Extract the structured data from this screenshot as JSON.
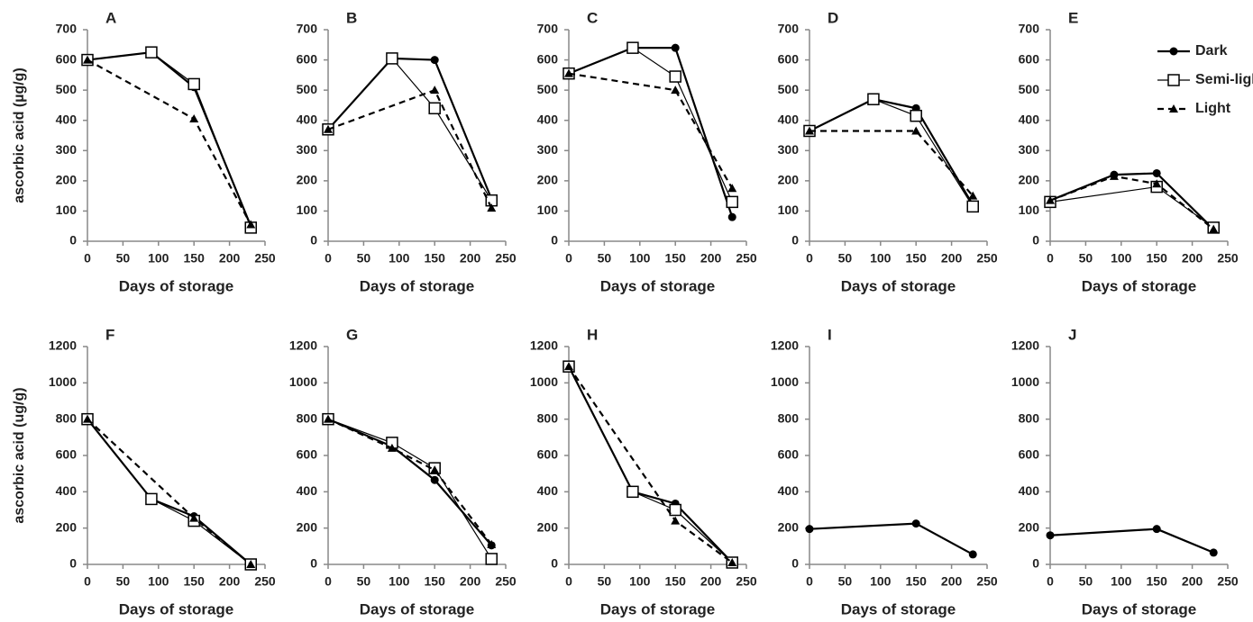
{
  "chart_data": [
    {
      "type": "line",
      "title": "A",
      "y_label": "ascorbic acid (µg/g)",
      "x_label": "Days of storage",
      "xlim": [
        0,
        250
      ],
      "xticks": [
        0,
        50,
        100,
        150,
        200,
        250
      ],
      "ylim": [
        0,
        700
      ],
      "yticks": [
        0,
        100,
        200,
        300,
        400,
        500,
        600,
        700
      ],
      "series": [
        {
          "name": "Dark",
          "color": "#000000",
          "marker": "circle",
          "linestyle": "solid",
          "x": [
            0,
            90,
            150,
            230
          ],
          "values": [
            600,
            625,
            510,
            50
          ]
        },
        {
          "name": "Semi-light",
          "color": "#000000",
          "marker": "square",
          "linestyle": "thin",
          "x": [
            0,
            90,
            150,
            230
          ],
          "values": [
            600,
            625,
            520,
            45
          ]
        },
        {
          "name": "Light",
          "color": "#000000",
          "marker": "triangle",
          "linestyle": "dashed",
          "x": [
            0,
            150,
            230
          ],
          "values": [
            600,
            405,
            55
          ]
        }
      ]
    },
    {
      "type": "line",
      "title": "B",
      "x_label": "Days of storage",
      "xlim": [
        0,
        250
      ],
      "xticks": [
        0,
        50,
        100,
        150,
        200,
        250
      ],
      "ylim": [
        0,
        700
      ],
      "yticks": [
        0,
        100,
        200,
        300,
        400,
        500,
        600,
        700
      ],
      "series": [
        {
          "name": "Dark",
          "color": "#000000",
          "marker": "circle",
          "linestyle": "solid",
          "x": [
            0,
            90,
            150,
            230
          ],
          "values": [
            370,
            605,
            600,
            140
          ]
        },
        {
          "name": "Semi-light",
          "color": "#000000",
          "marker": "square",
          "linestyle": "thin",
          "x": [
            0,
            90,
            150,
            230
          ],
          "values": [
            370,
            605,
            440,
            135
          ]
        },
        {
          "name": "Light",
          "color": "#000000",
          "marker": "triangle",
          "linestyle": "dashed",
          "x": [
            0,
            150,
            230
          ],
          "values": [
            370,
            500,
            110
          ]
        }
      ]
    },
    {
      "type": "line",
      "title": "C",
      "x_label": "Days of storage",
      "xlim": [
        0,
        250
      ],
      "xticks": [
        0,
        50,
        100,
        150,
        200,
        250
      ],
      "ylim": [
        0,
        700
      ],
      "yticks": [
        0,
        100,
        200,
        300,
        400,
        500,
        600,
        700
      ],
      "series": [
        {
          "name": "Dark",
          "color": "#000000",
          "marker": "circle",
          "linestyle": "solid",
          "x": [
            0,
            90,
            150,
            230
          ],
          "values": [
            555,
            640,
            640,
            80
          ]
        },
        {
          "name": "Semi-light",
          "color": "#000000",
          "marker": "square",
          "linestyle": "thin",
          "x": [
            0,
            90,
            150,
            230
          ],
          "values": [
            555,
            640,
            545,
            130
          ]
        },
        {
          "name": "Light",
          "color": "#000000",
          "marker": "triangle",
          "linestyle": "dashed",
          "x": [
            0,
            150,
            230
          ],
          "values": [
            555,
            500,
            175
          ]
        }
      ]
    },
    {
      "type": "line",
      "title": "D",
      "x_label": "Days of storage",
      "xlim": [
        0,
        250
      ],
      "xticks": [
        0,
        50,
        100,
        150,
        200,
        250
      ],
      "ylim": [
        0,
        700
      ],
      "yticks": [
        0,
        100,
        200,
        300,
        400,
        500,
        600,
        700
      ],
      "series": [
        {
          "name": "Dark",
          "color": "#000000",
          "marker": "circle",
          "linestyle": "solid",
          "x": [
            0,
            90,
            150,
            230
          ],
          "values": [
            365,
            470,
            440,
            120
          ]
        },
        {
          "name": "Semi-light",
          "color": "#000000",
          "marker": "square",
          "linestyle": "thin",
          "x": [
            0,
            90,
            150,
            230
          ],
          "values": [
            365,
            470,
            415,
            115
          ]
        },
        {
          "name": "Light",
          "color": "#000000",
          "marker": "triangle",
          "linestyle": "dashed",
          "x": [
            0,
            150,
            230
          ],
          "values": [
            365,
            365,
            150
          ]
        }
      ]
    },
    {
      "type": "line",
      "title": "E",
      "x_label": "Days of storage",
      "xlim": [
        0,
        250
      ],
      "xticks": [
        0,
        50,
        100,
        150,
        200,
        250
      ],
      "ylim": [
        0,
        700
      ],
      "yticks": [
        0,
        100,
        200,
        300,
        400,
        500,
        600,
        700
      ],
      "legend": "upper right",
      "series": [
        {
          "name": "Dark",
          "color": "#000000",
          "marker": "circle",
          "linestyle": "solid",
          "x": [
            0,
            90,
            150,
            230
          ],
          "values": [
            135,
            220,
            225,
            40
          ]
        },
        {
          "name": "Semi-light",
          "color": "#000000",
          "marker": "square",
          "linestyle": "thin",
          "x": [
            0,
            150,
            230
          ],
          "values": [
            130,
            180,
            45
          ]
        },
        {
          "name": "Light",
          "color": "#000000",
          "marker": "triangle",
          "linestyle": "dashed",
          "x": [
            0,
            90,
            150,
            230
          ],
          "values": [
            135,
            215,
            190,
            40
          ]
        }
      ]
    },
    {
      "type": "line",
      "title": "F",
      "y_label": "ascorbic acid (ug/g)",
      "x_label": "Days of storage",
      "xlim": [
        0,
        250
      ],
      "xticks": [
        0,
        50,
        100,
        150,
        200,
        250
      ],
      "ylim": [
        0,
        1200
      ],
      "yticks": [
        0,
        200,
        400,
        600,
        800,
        1000,
        1200
      ],
      "series": [
        {
          "name": "Dark",
          "color": "#000000",
          "marker": "circle",
          "linestyle": "solid",
          "x": [
            0,
            90,
            150,
            230
          ],
          "values": [
            800,
            360,
            265,
            0
          ]
        },
        {
          "name": "Semi-light",
          "color": "#000000",
          "marker": "square",
          "linestyle": "thin",
          "x": [
            0,
            90,
            150,
            230
          ],
          "values": [
            800,
            360,
            240,
            0
          ]
        },
        {
          "name": "Light",
          "color": "#000000",
          "marker": "triangle",
          "linestyle": "dashed",
          "x": [
            0,
            150,
            230
          ],
          "values": [
            800,
            255,
            0
          ]
        }
      ]
    },
    {
      "type": "line",
      "title": "G",
      "x_label": "Days of storage",
      "xlim": [
        0,
        250
      ],
      "xticks": [
        0,
        50,
        100,
        150,
        200,
        250
      ],
      "ylim": [
        0,
        1200
      ],
      "yticks": [
        0,
        200,
        400,
        600,
        800,
        1000,
        1200
      ],
      "series": [
        {
          "name": "Dark",
          "color": "#000000",
          "marker": "circle",
          "linestyle": "solid",
          "x": [
            0,
            90,
            150,
            230
          ],
          "values": [
            800,
            650,
            465,
            105
          ]
        },
        {
          "name": "Semi-light",
          "color": "#000000",
          "marker": "square",
          "linestyle": "thin",
          "x": [
            0,
            90,
            150,
            230
          ],
          "values": [
            800,
            670,
            530,
            30
          ]
        },
        {
          "name": "Light",
          "color": "#000000",
          "marker": "triangle",
          "linestyle": "dashed",
          "x": [
            0,
            90,
            150,
            230
          ],
          "values": [
            800,
            640,
            520,
            110
          ]
        }
      ]
    },
    {
      "type": "line",
      "title": "H",
      "x_label": "Days of storage",
      "xlim": [
        0,
        250
      ],
      "xticks": [
        0,
        50,
        100,
        150,
        200,
        250
      ],
      "ylim": [
        0,
        1200
      ],
      "yticks": [
        0,
        200,
        400,
        600,
        800,
        1000,
        1200
      ],
      "series": [
        {
          "name": "Dark",
          "color": "#000000",
          "marker": "circle",
          "linestyle": "solid",
          "x": [
            0,
            90,
            150,
            230
          ],
          "values": [
            1090,
            400,
            335,
            10
          ]
        },
        {
          "name": "Semi-light",
          "color": "#000000",
          "marker": "square",
          "linestyle": "thin",
          "x": [
            0,
            90,
            150,
            230
          ],
          "values": [
            1090,
            400,
            300,
            10
          ]
        },
        {
          "name": "Light",
          "color": "#000000",
          "marker": "triangle",
          "linestyle": "dashed",
          "x": [
            0,
            150,
            230
          ],
          "values": [
            1090,
            240,
            10
          ]
        }
      ]
    },
    {
      "type": "line",
      "title": "I",
      "x_label": "Days of storage",
      "xlim": [
        0,
        250
      ],
      "xticks": [
        0,
        50,
        100,
        150,
        200,
        250
      ],
      "ylim": [
        0,
        1200
      ],
      "yticks": [
        0,
        200,
        400,
        600,
        800,
        1000,
        1200
      ],
      "series": [
        {
          "name": "Dark",
          "color": "#000000",
          "marker": "circle",
          "linestyle": "solid",
          "x": [
            0,
            150,
            230
          ],
          "values": [
            195,
            225,
            55
          ]
        }
      ]
    },
    {
      "type": "line",
      "title": "J",
      "x_label": "Days of storage",
      "xlim": [
        0,
        250
      ],
      "xticks": [
        0,
        50,
        100,
        150,
        200,
        250
      ],
      "ylim": [
        0,
        1200
      ],
      "yticks": [
        0,
        200,
        400,
        600,
        800,
        1000,
        1200
      ],
      "series": [
        {
          "name": "Dark",
          "color": "#000000",
          "marker": "circle",
          "linestyle": "solid",
          "x": [
            0,
            150,
            230
          ],
          "values": [
            160,
            195,
            65
          ]
        }
      ]
    }
  ]
}
